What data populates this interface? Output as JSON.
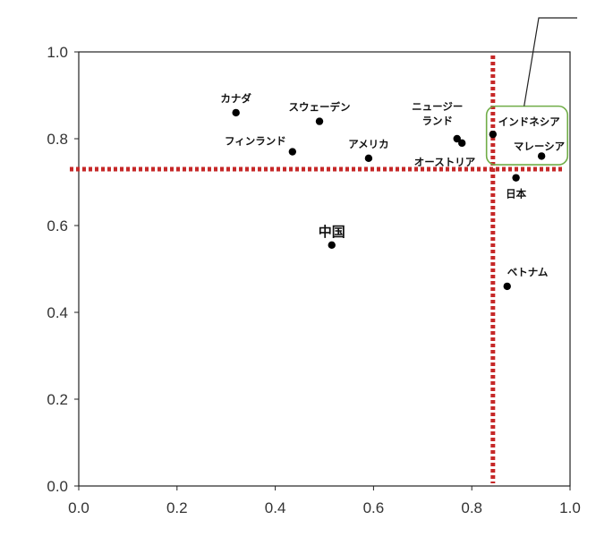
{
  "chart_data": {
    "type": "scatter",
    "title": "",
    "xlabel": "",
    "ylabel": "",
    "xlim": [
      0.0,
      1.0
    ],
    "ylim": [
      0.0,
      1.0
    ],
    "x_ticks": [
      "0.0",
      "0.2",
      "0.4",
      "0.6",
      "0.8",
      "1.0"
    ],
    "y_ticks": [
      "0.0",
      "0.2",
      "0.4",
      "0.6",
      "0.8",
      "1.0"
    ],
    "grid": false,
    "legend": "none",
    "point_color": "#000000",
    "reference_line_color": "#c62828",
    "highlight_box_color": "#70ad47",
    "reference_lines": {
      "x": 0.843,
      "y": 0.73
    },
    "highlight_box": {
      "x_range": [
        0.83,
        0.995
      ],
      "y_range": [
        0.74,
        0.875
      ]
    },
    "points": [
      {
        "label": "カナダ",
        "x": 0.32,
        "y": 0.86
      },
      {
        "label": "スウェーデン",
        "x": 0.49,
        "y": 0.84
      },
      {
        "label": "フィンランド",
        "x": 0.435,
        "y": 0.77
      },
      {
        "label": "アメリカ",
        "x": 0.59,
        "y": 0.755
      },
      {
        "label": "ニュージー\nランド",
        "x": 0.77,
        "y": 0.8
      },
      {
        "label": "オーストリア",
        "x": 0.78,
        "y": 0.79
      },
      {
        "label": "インドネシア",
        "x": 0.843,
        "y": 0.81
      },
      {
        "label": "マレーシア",
        "x": 0.942,
        "y": 0.76
      },
      {
        "label": "日本",
        "x": 0.89,
        "y": 0.71
      },
      {
        "label": "中国",
        "x": 0.515,
        "y": 0.555
      },
      {
        "label": "ベトナム",
        "x": 0.872,
        "y": 0.46
      }
    ]
  }
}
